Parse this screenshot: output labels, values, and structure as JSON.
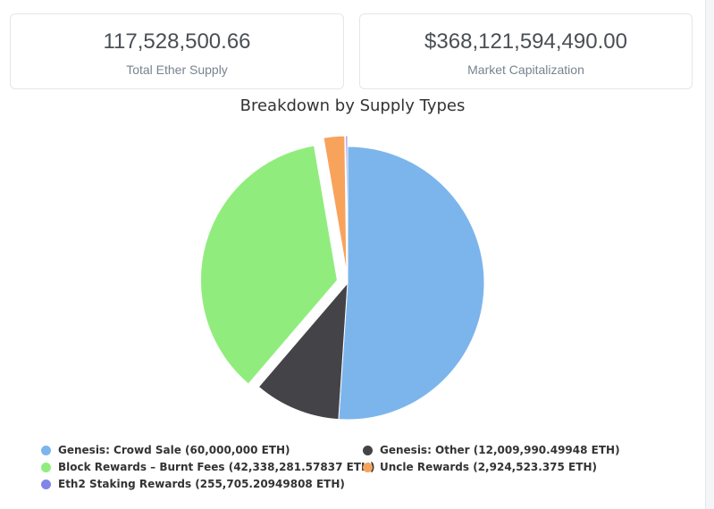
{
  "stats": {
    "total_supply": {
      "value": "117,528,500.66",
      "label": "Total Ether Supply"
    },
    "market_cap": {
      "value": "$368,121,594,490.00",
      "label": "Market Capitalization"
    }
  },
  "chart_data": {
    "type": "pie",
    "title": "Breakdown by Supply Types",
    "legend_position": "bottom",
    "slices": [
      {
        "name": "Genesis: Crowd Sale (60,000,000 ETH)",
        "value": 60000000,
        "color": "#7cb5ec",
        "exploded": false
      },
      {
        "name": "Genesis: Other (12,009,990.49948 ETH)",
        "value": 12009990.49948,
        "color": "#434348",
        "exploded": false
      },
      {
        "name": "Block Rewards – Burnt Fees (42,338,281.57837 ETH)",
        "value": 42338281.57837,
        "color": "#90ed7d",
        "exploded": true
      },
      {
        "name": "Uncle Rewards (2,924,523.375 ETH)",
        "value": 2924523.375,
        "color": "#f7a35c",
        "exploded": true
      },
      {
        "name": "Eth2 Staking Rewards (255,705.20949808 ETH)",
        "value": 255705.20949808,
        "color": "#8085e9",
        "exploded": true
      }
    ]
  }
}
